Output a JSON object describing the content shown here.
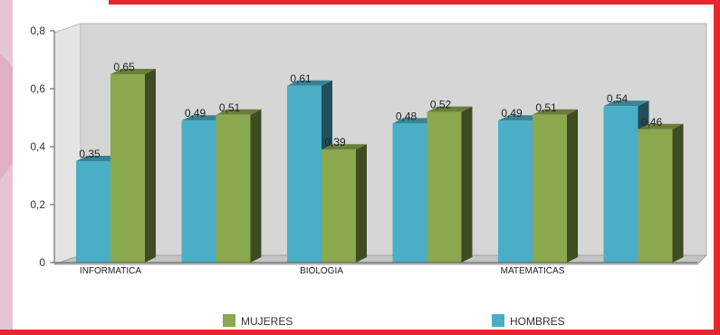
{
  "chart_data": {
    "type": "bar",
    "style": "3d-clustered",
    "title": "",
    "xlabel": "",
    "ylabel": "",
    "ylim": [
      0,
      0.8
    ],
    "y_ticks": [
      "0",
      "0,2",
      "0,4",
      "0,6",
      "0,8"
    ],
    "categories": [
      "INFORMATICA",
      "",
      "BIOLOGIA",
      "",
      "MATEMATICAS",
      ""
    ],
    "series": [
      {
        "name": "HOMBRES",
        "color": "#4aaec6",
        "values": [
          0.35,
          0.49,
          0.61,
          0.48,
          0.49,
          0.54
        ],
        "labels": [
          "0,35",
          "0,49",
          "0,61",
          "0,48",
          "0,49",
          "0,54"
        ]
      },
      {
        "name": "MUJERES",
        "color": "#8aa84d",
        "values": [
          0.65,
          0.51,
          0.39,
          0.52,
          0.51,
          0.46
        ],
        "labels": [
          "0,65",
          "0,51",
          "0,39",
          "0,52",
          "0,51",
          "0,46"
        ]
      }
    ],
    "legend": {
      "position": "bottom",
      "order": [
        "MUJERES",
        "HOMBRES"
      ]
    },
    "grid": false,
    "colors": {
      "plot_wall": "#d6d6d6",
      "accent_red": "#e8262c",
      "accent_pink": "#e3bccb"
    }
  }
}
